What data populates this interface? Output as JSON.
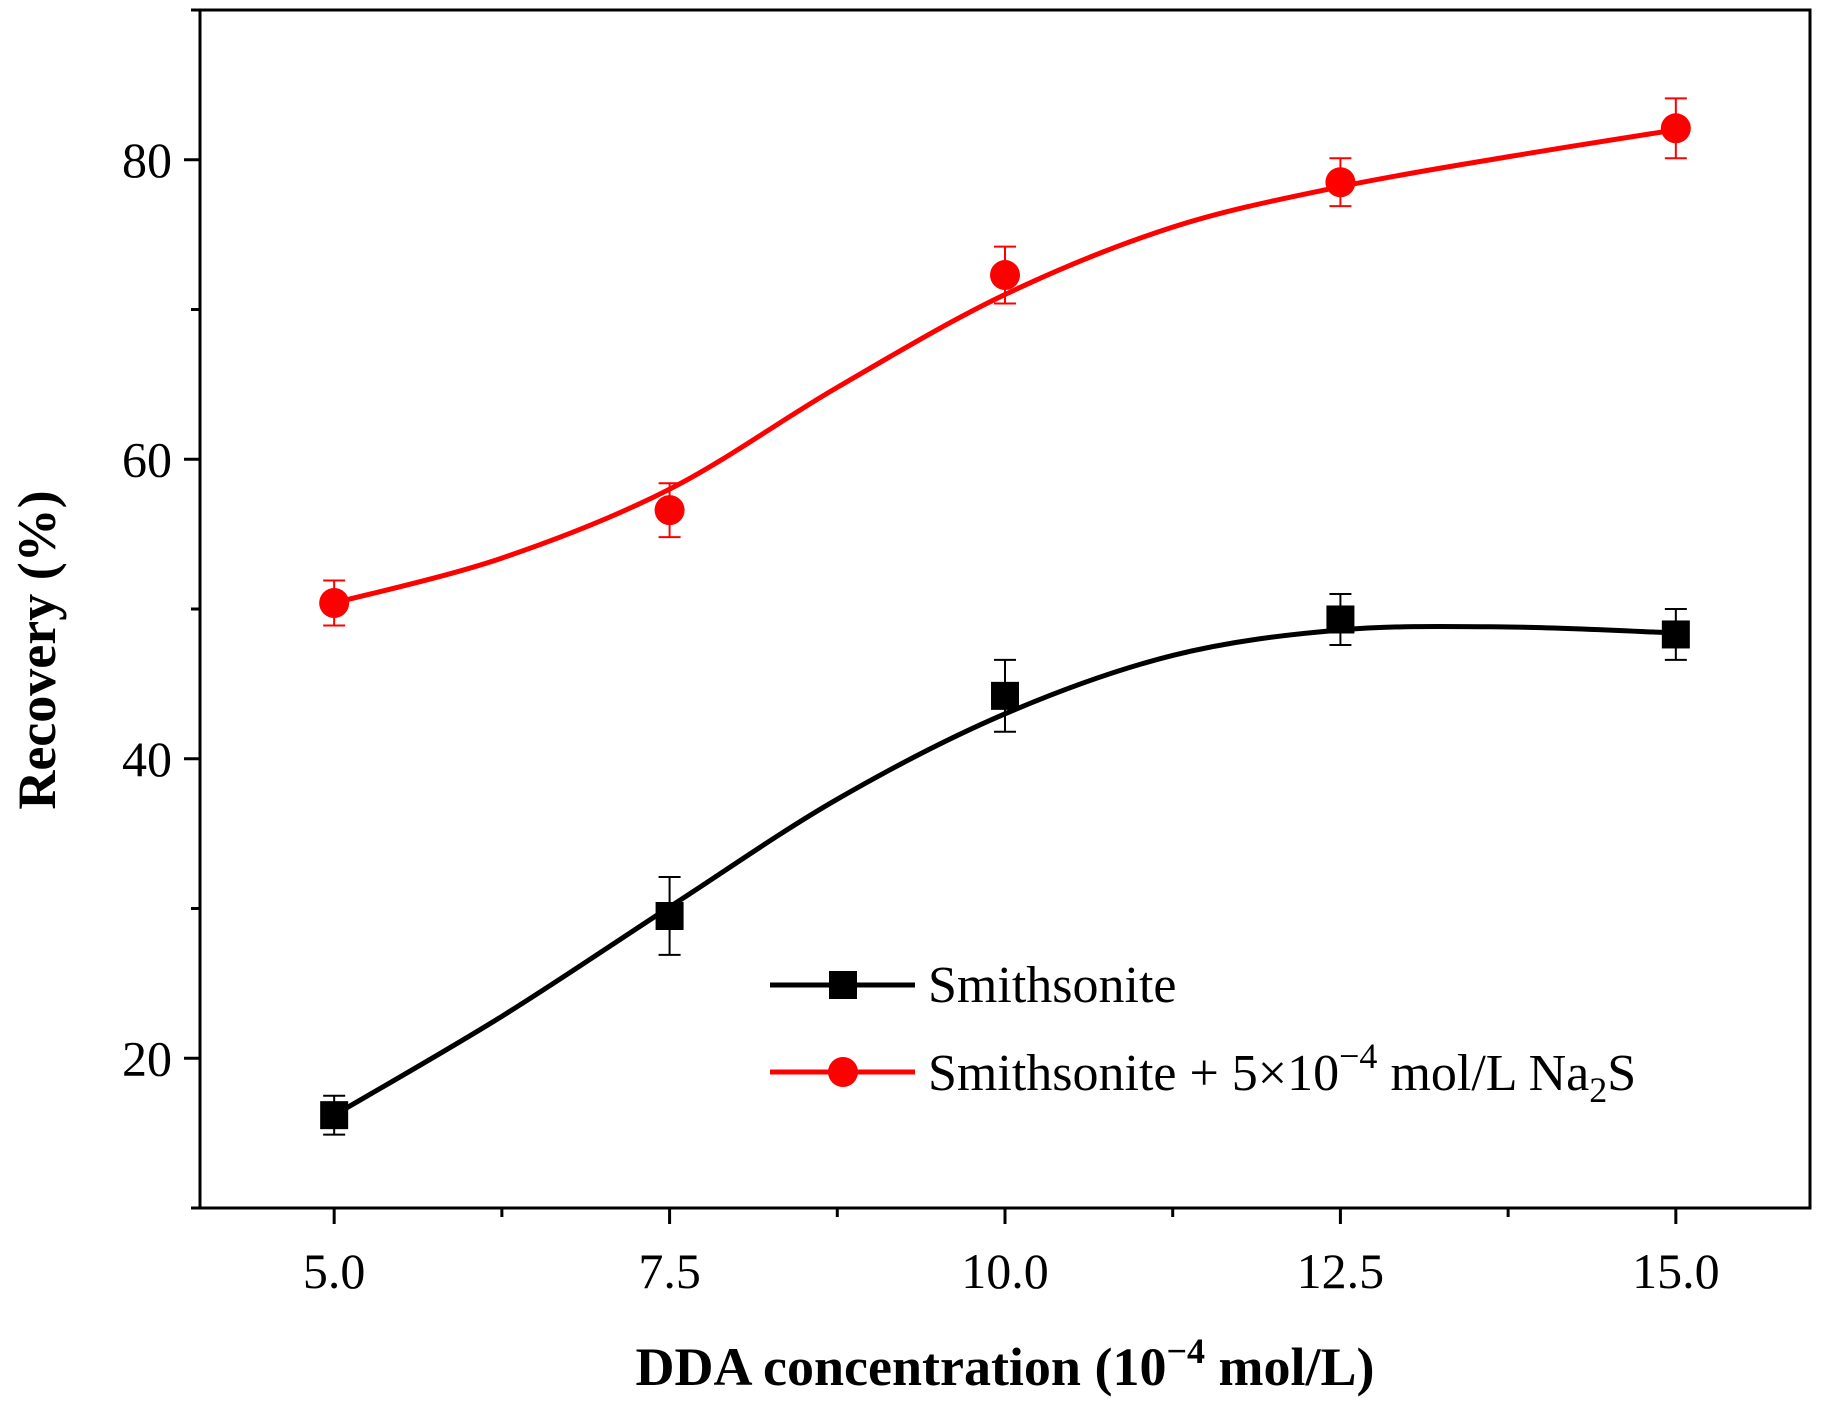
{
  "chart_data": {
    "type": "line",
    "title": "",
    "xlabel": "DDA concentration (10⁻⁴ mol/L)",
    "xlabel_parts": {
      "pre": "DDA concentration (10",
      "sup": "−4",
      "post": " mol/L)"
    },
    "ylabel": "Recovery (%)",
    "xlim": [
      4.0,
      16.0
    ],
    "ylim": [
      10,
      90
    ],
    "xticks": [
      5.0,
      7.5,
      10.0,
      12.5,
      15.0
    ],
    "xtick_labels": [
      "5.0",
      "7.5",
      "10.0",
      "12.5",
      "15.0"
    ],
    "x_minor_ticks": [
      6.25,
      8.75,
      11.25,
      13.75
    ],
    "yticks": [
      20,
      40,
      60,
      80
    ],
    "ytick_labels": [
      "20",
      "40",
      "60",
      "80"
    ],
    "grid": false,
    "legend_position": "bottom-right",
    "x": [
      5.0,
      7.5,
      10.0,
      12.5,
      15.0
    ],
    "series": [
      {
        "name": "Smithsonite",
        "legend_parts": {
          "pre": "Smithsonite",
          "sup": "",
          "mid": "",
          "sub": "",
          "post": ""
        },
        "color": "#000000",
        "marker": "square",
        "values": [
          16.2,
          29.5,
          44.2,
          49.3,
          48.3
        ],
        "errors": [
          1.3,
          2.6,
          2.4,
          1.7,
          1.7
        ],
        "fit_curve": {
          "x": [
            5.0,
            6.25,
            7.5,
            8.75,
            10.0,
            11.25,
            12.5,
            13.75,
            15.0
          ],
          "y": [
            16.2,
            22.8,
            30.1,
            37.3,
            43.0,
            46.9,
            48.6,
            48.8,
            48.4
          ]
        }
      },
      {
        "name": "Smithsonite + 5×10⁻⁴ mol/L Na₂S",
        "legend_parts": {
          "pre": "Smithsonite + 5×10",
          "sup": "−4",
          "mid": " mol/L Na",
          "sub": "2",
          "post": "S"
        },
        "color": "#ff0000",
        "marker": "circle",
        "values": [
          50.4,
          56.6,
          72.3,
          78.5,
          82.1
        ],
        "errors": [
          1.5,
          1.8,
          1.9,
          1.6,
          2.0
        ],
        "fit_curve": {
          "x": [
            5.0,
            6.25,
            7.5,
            8.75,
            10.0,
            11.25,
            12.5,
            13.75,
            15.0
          ],
          "y": [
            50.4,
            53.4,
            58.0,
            64.8,
            71.0,
            75.5,
            78.2,
            80.2,
            82.0
          ]
        }
      }
    ]
  }
}
